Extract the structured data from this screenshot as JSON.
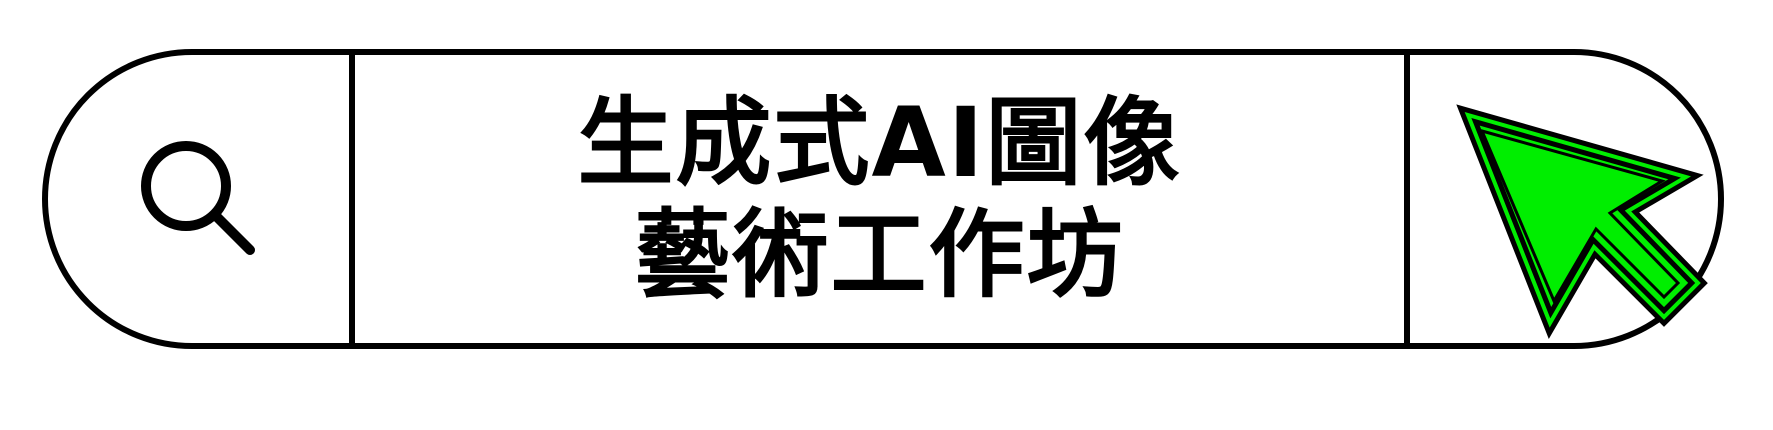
{
  "banner": {
    "title_line_1": "生成式AI圖像",
    "title_line_2": "藝術工作坊"
  },
  "icons": {
    "left": "search-icon",
    "right": "cursor-arrow-icon"
  },
  "colors": {
    "outline": "#000000",
    "background": "#ffffff",
    "cursor_fill": "#00ee00"
  }
}
